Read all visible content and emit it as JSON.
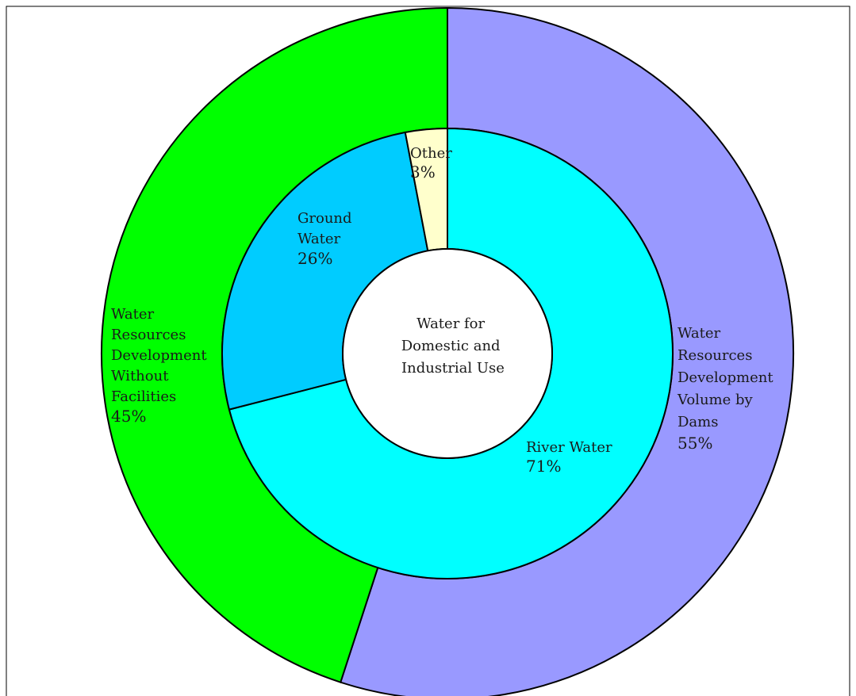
{
  "chart_data": {
    "type": "pie",
    "variant": "nested-donut",
    "center_label": [
      "Water for",
      "Domestic and",
      "Industrial Use"
    ],
    "outer_ring": [
      {
        "name": "Water Resources Development Volume by Dams",
        "label_lines": [
          "Water",
          "Resources",
          "Development",
          "Volume by",
          "Dams"
        ],
        "percent_label": "55%",
        "value": 55,
        "color": "#9999ff"
      },
      {
        "name": "Water Resources Development Without Facilities",
        "label_lines": [
          "Water",
          "Resources",
          "Development",
          "Without",
          "Facilities"
        ],
        "percent_label": "45%",
        "value": 45,
        "color": "#00ff00"
      }
    ],
    "inner_ring": [
      {
        "name": "River Water",
        "label_lines": [
          "River Water"
        ],
        "percent_label": "71%",
        "value": 71,
        "color": "#00ffff"
      },
      {
        "name": "Ground Water",
        "label_lines": [
          "Ground",
          "Water"
        ],
        "percent_label": "26%",
        "value": 26,
        "color": "#00ccff"
      },
      {
        "name": "Other",
        "label_lines": [
          "Other"
        ],
        "percent_label": "3%",
        "value": 3,
        "color": "#ffffcc"
      }
    ],
    "direction": "clockwise",
    "start_angle": "top",
    "legend": "none"
  }
}
